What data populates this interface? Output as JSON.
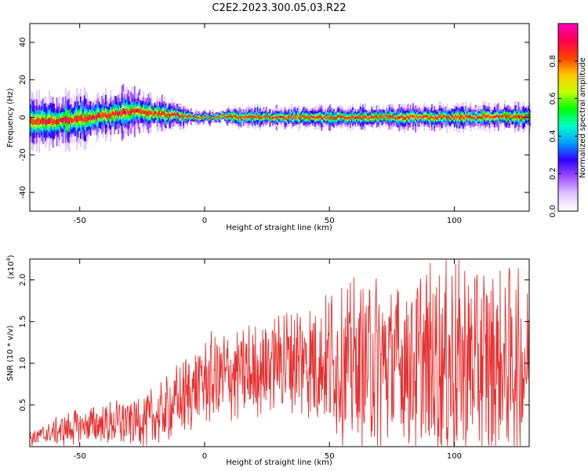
{
  "title": "C2E2.2023.300.05.03.R22",
  "chart_data": [
    {
      "type": "heatmap",
      "name": "frequency-spectrogram",
      "xlabel": "Height of straight line (km)",
      "ylabel": "Frequency (Hz)",
      "xlim": [
        -70,
        130
      ],
      "ylim": [
        -50,
        50
      ],
      "x_ticks": [
        -50,
        0,
        50,
        100
      ],
      "y_ticks": [
        -40,
        -20,
        0,
        20,
        40
      ],
      "colorbar": {
        "label": "Normalized spectral amplitude",
        "range": [
          0,
          1
        ],
        "ticks": [
          0.0,
          0.2,
          0.4,
          0.6,
          0.8
        ],
        "tick_labels": [
          "0.0",
          "0.2",
          "0.4",
          "0.6",
          "0.8"
        ],
        "colormap": [
          "#ffffff",
          "#e0c8ff",
          "#a050ff",
          "#3000ff",
          "#00a0ff",
          "#00ffc8",
          "#00ff00",
          "#c8ff00",
          "#ffc800",
          "#ff4000",
          "#ff0050",
          "#ff00c0"
        ]
      },
      "ridge_center": {
        "x": [
          -70,
          -60,
          -50,
          -40,
          -30,
          -25,
          -20,
          -10,
          -5,
          0,
          5,
          8,
          12,
          20,
          30,
          40,
          50,
          60,
          70,
          80,
          90,
          100,
          110,
          120,
          130
        ],
        "y": [
          -2,
          -2,
          -1,
          1,
          3,
          3,
          2,
          1,
          0,
          0,
          0,
          1,
          0,
          0,
          0,
          0,
          0,
          0,
          0,
          0,
          0,
          0,
          0.5,
          0.5,
          0.5
        ]
      },
      "ridge_halfwidth": {
        "x": [
          -70,
          -50,
          -30,
          -10,
          -5,
          5,
          10,
          50,
          130
        ],
        "y": [
          6,
          6,
          5,
          3,
          1.5,
          1.5,
          2.5,
          2.5,
          3
        ]
      }
    },
    {
      "type": "line",
      "name": "snr-trace",
      "xlabel": "Height of straight line (km)",
      "ylabel": "SNR (10 * v/v)",
      "y_multiplier": "(x10",
      "y_multiplier_exp": "4",
      "y_multiplier_close": ")",
      "xlim": [
        -70,
        130
      ],
      "ylim": [
        0,
        2.25
      ],
      "x_ticks": [
        -50,
        0,
        50,
        100
      ],
      "y_ticks": [
        0.5,
        1.0,
        1.5,
        2.0
      ],
      "y_tick_labels": [
        "0.5",
        "1.0",
        "1.5",
        "2.0"
      ],
      "line_color": "#e83030",
      "envelope": {
        "x": [
          -70,
          -50,
          -30,
          -20,
          -10,
          0,
          10,
          20,
          30,
          40,
          50,
          60,
          70,
          80,
          90,
          100,
          110,
          120,
          130
        ],
        "mean": [
          0.1,
          0.25,
          0.3,
          0.35,
          0.55,
          0.8,
          0.85,
          0.9,
          1.05,
          1.05,
          1.0,
          1.0,
          1.0,
          1.0,
          1.0,
          1.0,
          1.0,
          1.0,
          1.0
        ],
        "amp": [
          0.08,
          0.2,
          0.25,
          0.3,
          0.4,
          0.45,
          0.5,
          0.5,
          0.55,
          0.65,
          0.75,
          0.85,
          0.9,
          0.95,
          1.0,
          1.1,
          1.05,
          1.0,
          0.95
        ]
      }
    }
  ]
}
